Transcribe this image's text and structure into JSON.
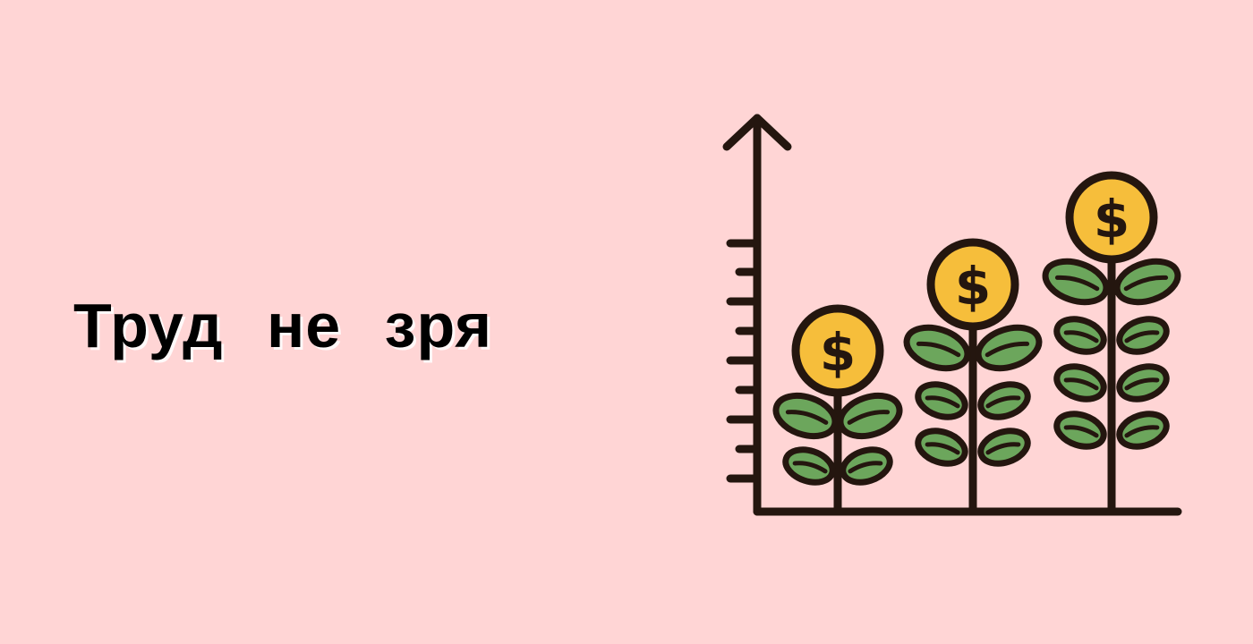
{
  "headline": "Труд  не  зря",
  "illustration": {
    "icon": "money-plant-growth-chart-icon",
    "coin_symbol": "$",
    "coin_count": 3,
    "colors": {
      "background": "#FFD5D5",
      "outline": "#24160F",
      "coin": "#F6BE3B",
      "leaf": "#6CA65C"
    }
  }
}
